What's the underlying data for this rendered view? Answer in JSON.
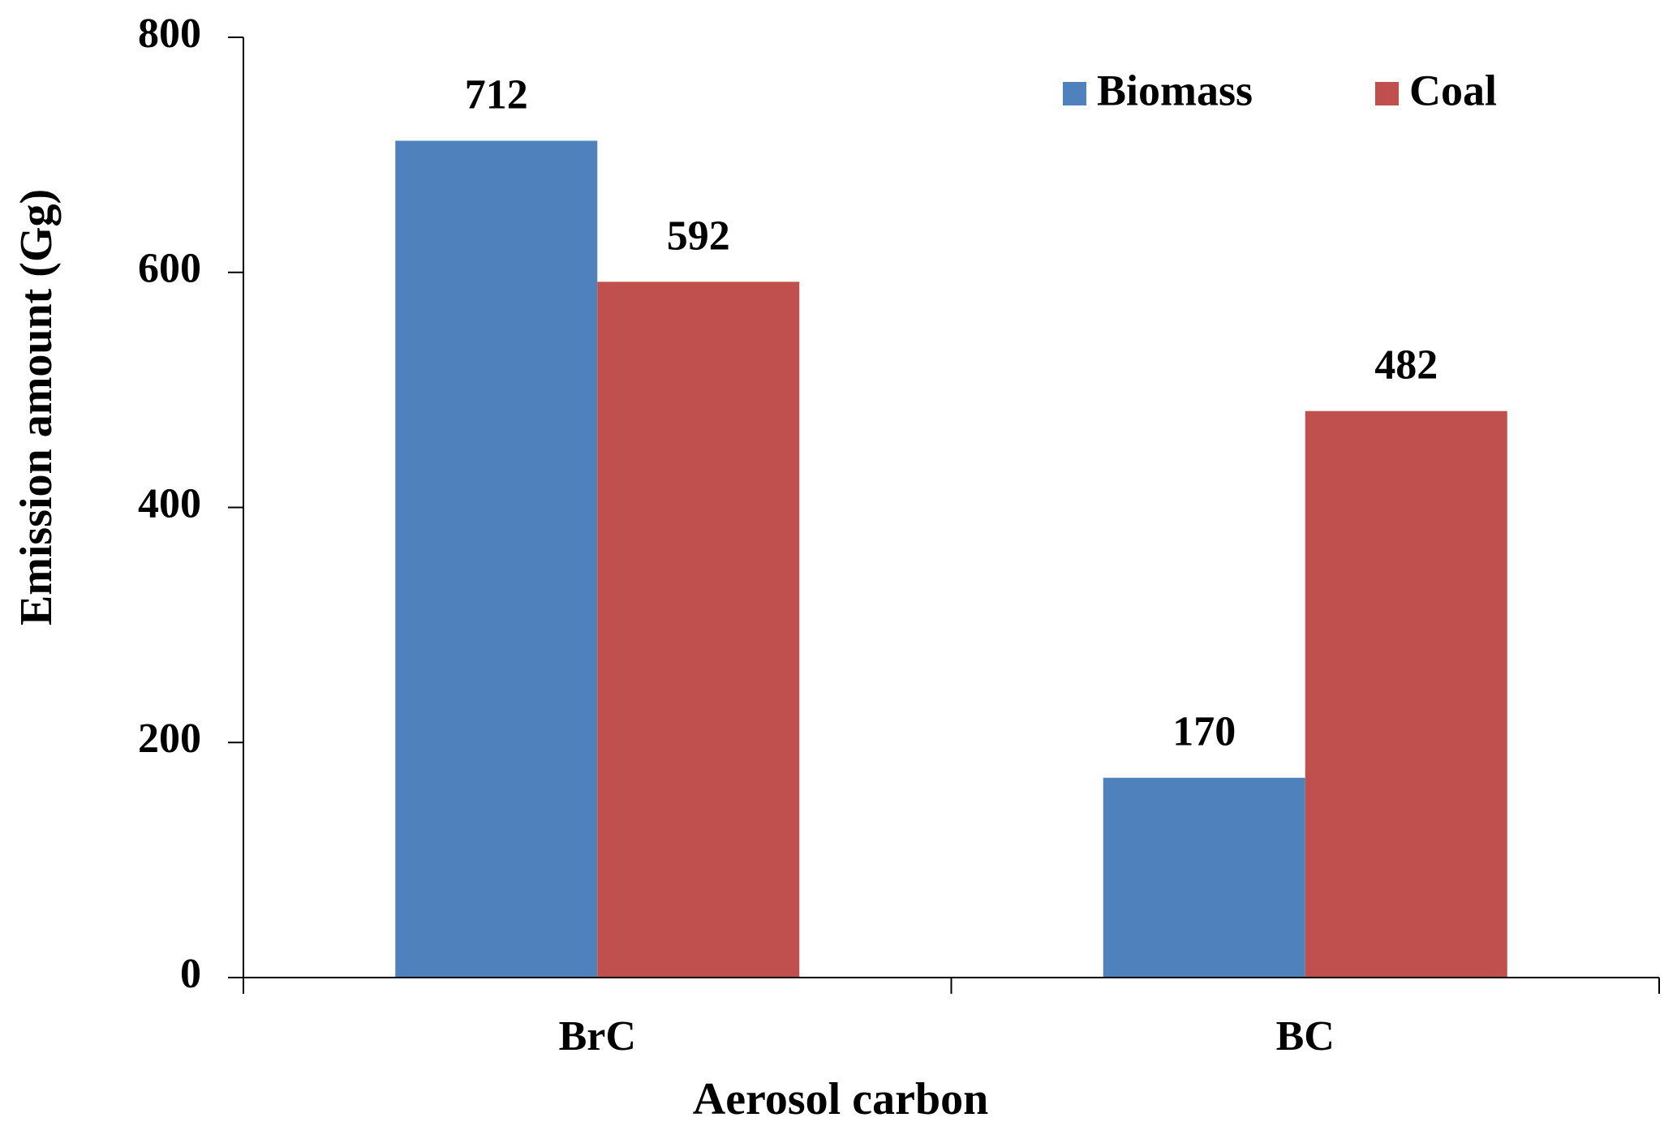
{
  "chart_data": {
    "type": "bar",
    "x_label": "Aerosol carbon",
    "y_label": "Emission amount (Gg)",
    "categories": [
      "BrC",
      "BC"
    ],
    "series": [
      {
        "name": "Biomass",
        "color": "#4f81bd",
        "values": [
          712,
          170
        ]
      },
      {
        "name": "Coal",
        "color": "#c0504d",
        "values": [
          592,
          482
        ]
      }
    ],
    "ylim": [
      0,
      800
    ],
    "yticks": [
      0,
      200,
      400,
      600,
      800
    ],
    "legend": "top-right"
  }
}
